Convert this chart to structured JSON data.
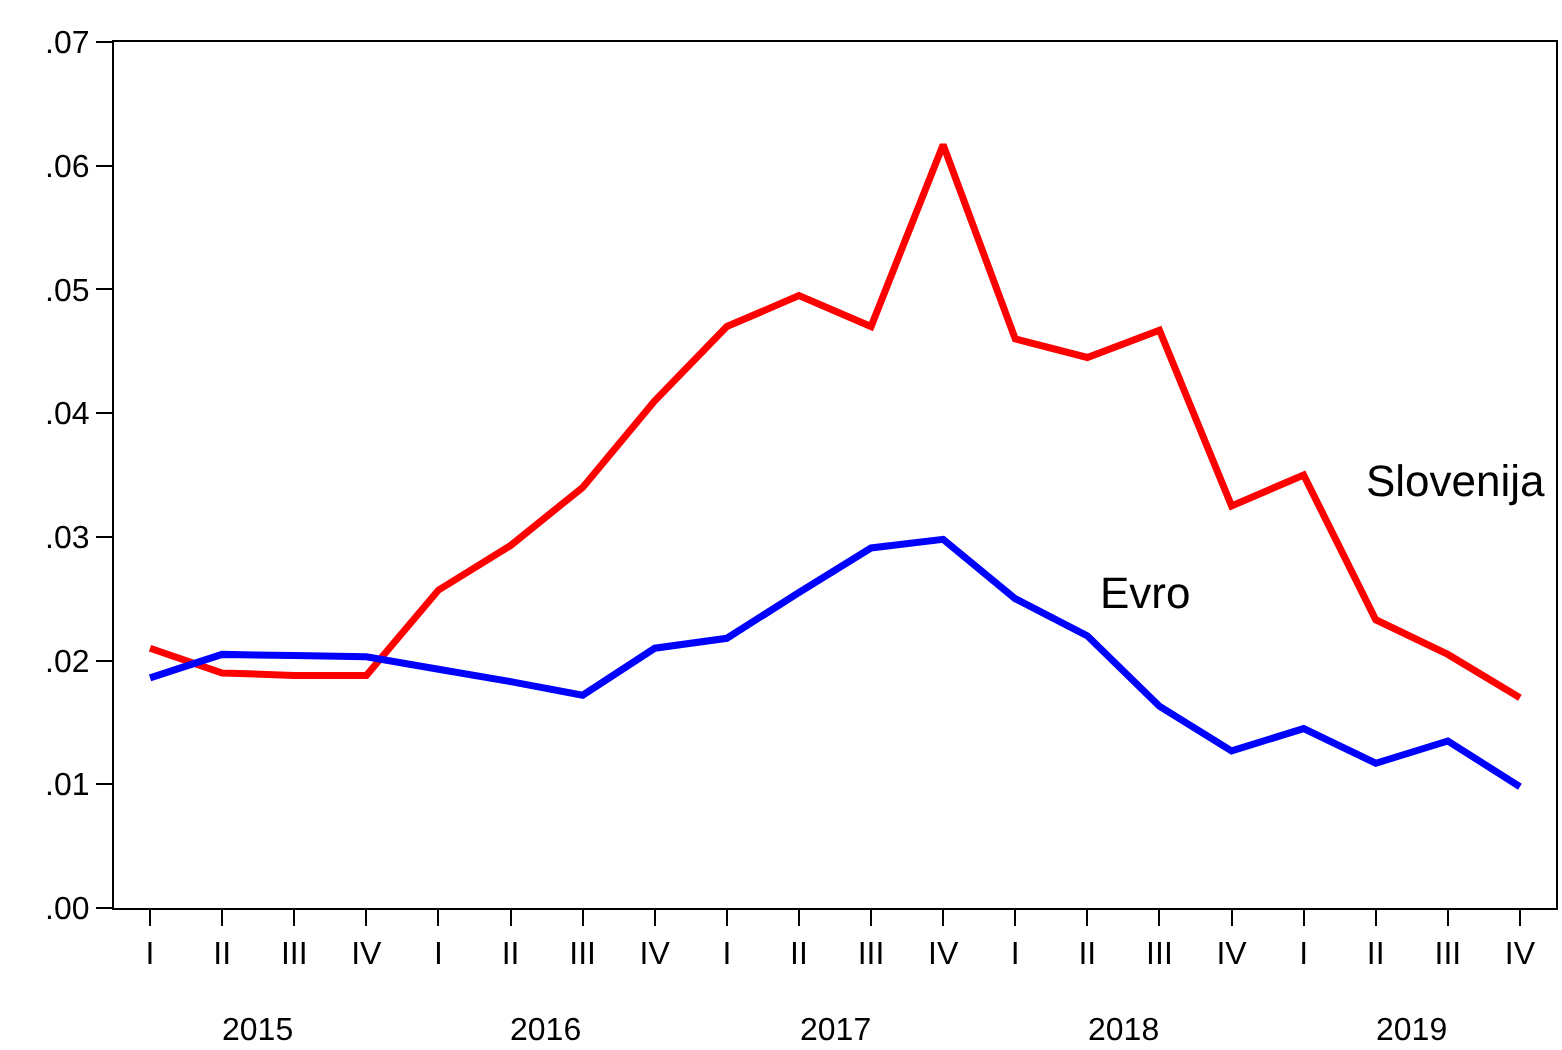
{
  "chart_data": {
    "type": "line",
    "categories": [
      "I",
      "II",
      "III",
      "IV",
      "I",
      "II",
      "III",
      "IV",
      "I",
      "II",
      "III",
      "IV",
      "I",
      "II",
      "III",
      "IV",
      "I",
      "II",
      "III",
      "IV"
    ],
    "series": [
      {
        "name": "Slovenija",
        "color": "#ff0000",
        "values": [
          0.021,
          0.019,
          0.0188,
          0.0188,
          0.0257,
          0.0293,
          0.034,
          0.041,
          0.047,
          0.0495,
          0.047,
          0.0617,
          0.046,
          0.0445,
          0.0467,
          0.0325,
          0.035,
          0.0233,
          0.0205,
          0.017
        ]
      },
      {
        "name": "Evro",
        "color": "#0000ff",
        "values": [
          0.0186,
          0.0205,
          0.0204,
          0.0203,
          0.0193,
          0.0183,
          0.0172,
          0.021,
          0.0218,
          0.0255,
          0.0291,
          0.0298,
          0.025,
          0.022,
          0.0163,
          0.0127,
          0.0145,
          0.0117,
          0.0135,
          0.0098
        ]
      }
    ],
    "annotations": [
      "2015",
      "2016",
      "2017",
      "2018",
      "2019"
    ],
    "ylim": [
      0,
      0.07
    ],
    "yticks": [
      {
        "value": 0,
        "label": ".00"
      },
      {
        "value": 0.01,
        "label": ".01"
      },
      {
        "value": 0.02,
        "label": ".02"
      },
      {
        "value": 0.03,
        "label": ".03"
      },
      {
        "value": 0.04,
        "label": ".04"
      },
      {
        "value": 0.05,
        "label": ".05"
      },
      {
        "value": 0.06,
        "label": ".06"
      },
      {
        "value": 0.07,
        "label": ".07"
      }
    ],
    "grid": false,
    "legend": false,
    "marker": "none",
    "line_style": "solid"
  }
}
